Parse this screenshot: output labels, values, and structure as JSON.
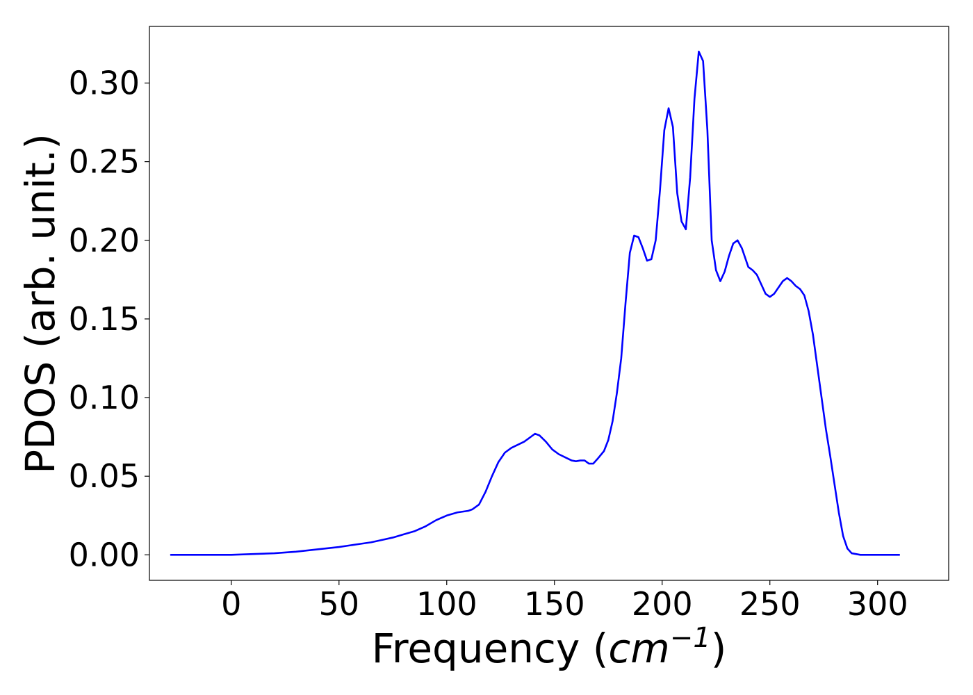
{
  "chart_data": {
    "type": "line",
    "title": "",
    "xlabel_main": "Frequency (",
    "xlabel_unit": "cm",
    "xlabel_exp": "−1",
    "xlabel_close": ")",
    "ylabel": "PDOS (arb. unit.)",
    "xlim": [
      -38,
      333
    ],
    "ylim": [
      -0.0162,
      0.336
    ],
    "xticks": [
      0,
      50,
      100,
      150,
      200,
      250,
      300
    ],
    "xtick_labels": [
      "0",
      "50",
      "100",
      "150",
      "200",
      "250",
      "300"
    ],
    "yticks": [
      0.0,
      0.05,
      0.1,
      0.15,
      0.2,
      0.25,
      0.3
    ],
    "ytick_labels": [
      "0.00",
      "0.05",
      "0.10",
      "0.15",
      "0.20",
      "0.25",
      "0.30"
    ],
    "grid": false,
    "line_color": "#0000ff",
    "series": [
      {
        "x": [
          -28,
          0,
          10,
          20,
          30,
          40,
          50,
          55,
          60,
          65,
          70,
          75,
          80,
          85,
          90,
          95,
          100,
          105,
          110,
          112,
          115,
          118,
          121,
          124,
          127,
          130,
          133,
          136,
          139,
          141,
          143,
          146,
          149,
          152,
          155,
          158,
          160,
          162,
          164,
          166,
          168,
          170,
          173,
          175,
          177,
          179,
          181,
          183,
          185,
          187,
          189,
          191,
          193,
          195,
          197,
          199,
          201,
          203,
          205,
          207,
          209,
          211,
          213,
          215,
          217,
          219,
          221,
          223,
          225,
          227,
          229,
          231,
          233,
          235,
          237,
          240,
          242,
          244,
          246,
          248,
          250,
          252,
          254,
          256,
          258,
          260,
          262,
          264,
          266,
          268,
          270,
          272,
          274,
          276,
          278,
          280,
          282,
          284,
          286,
          288,
          292,
          300,
          310
        ],
        "y": [
          0.0,
          0.0,
          0.0005,
          0.001,
          0.002,
          0.0035,
          0.005,
          0.006,
          0.007,
          0.008,
          0.0095,
          0.011,
          0.013,
          0.015,
          0.018,
          0.022,
          0.025,
          0.027,
          0.028,
          0.029,
          0.032,
          0.04,
          0.05,
          0.059,
          0.065,
          0.068,
          0.07,
          0.072,
          0.075,
          0.077,
          0.076,
          0.072,
          0.067,
          0.064,
          0.062,
          0.06,
          0.0595,
          0.06,
          0.06,
          0.058,
          0.058,
          0.061,
          0.066,
          0.073,
          0.085,
          0.103,
          0.125,
          0.16,
          0.192,
          0.203,
          0.202,
          0.195,
          0.187,
          0.188,
          0.2,
          0.232,
          0.27,
          0.284,
          0.272,
          0.23,
          0.212,
          0.207,
          0.24,
          0.29,
          0.32,
          0.314,
          0.27,
          0.2,
          0.181,
          0.174,
          0.18,
          0.19,
          0.198,
          0.2,
          0.195,
          0.183,
          0.181,
          0.178,
          0.172,
          0.166,
          0.164,
          0.166,
          0.17,
          0.174,
          0.176,
          0.174,
          0.171,
          0.169,
          0.165,
          0.155,
          0.14,
          0.12,
          0.1,
          0.08,
          0.063,
          0.045,
          0.027,
          0.012,
          0.004,
          0.001,
          0.0,
          0.0,
          0.0
        ]
      }
    ]
  }
}
